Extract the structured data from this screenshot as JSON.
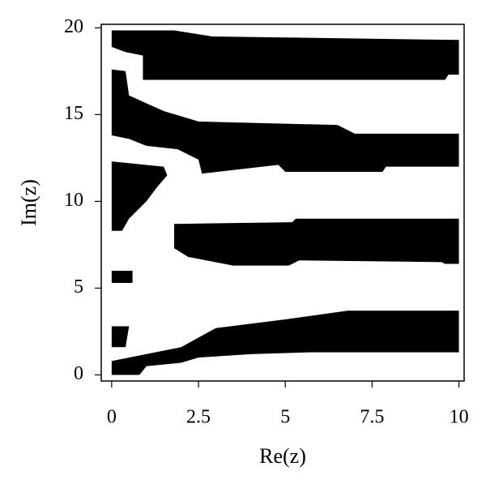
{
  "chart_data": {
    "type": "region",
    "xlabel": "Re(z)",
    "ylabel": "Im(z)",
    "xlim": [
      -0.3,
      10.15
    ],
    "ylim": [
      -0.35,
      20.2
    ],
    "xticks": [
      0,
      2.5,
      5,
      7.5,
      10
    ],
    "yticks": [
      0,
      5,
      10,
      15,
      20
    ],
    "color": "#000000",
    "regions": [
      {
        "x": [
          0,
          1.8,
          2.9,
          10,
          10,
          9.7,
          9.6,
          0.9,
          0.9,
          0.4,
          0
        ],
        "y": [
          19.85,
          19.85,
          19.5,
          19.3,
          17.3,
          17.3,
          17.0,
          17.0,
          18.4,
          18.6,
          18.9
        ]
      },
      {
        "x": [
          0,
          0.4,
          0.5,
          1.5,
          2.5,
          6.5,
          7.0,
          10,
          10,
          7.9,
          7.8,
          5.0,
          4.8,
          2.6,
          2.5,
          1.9,
          1.0,
          0.5,
          0
        ],
        "y": [
          17.6,
          17.5,
          16.1,
          15.2,
          14.6,
          14.4,
          13.9,
          13.9,
          12.0,
          12.0,
          11.7,
          11.7,
          12.1,
          11.6,
          12.4,
          13.0,
          13.2,
          13.6,
          13.8
        ]
      },
      {
        "x": [
          0,
          1.5,
          1.6,
          1.3,
          1.0,
          0.5,
          0.3,
          0
        ],
        "y": [
          12.3,
          12.0,
          11.5,
          10.8,
          10.0,
          9.0,
          8.3,
          8.3
        ]
      },
      {
        "x": [
          1.8,
          5.2,
          5.3,
          10,
          10,
          9.6,
          9.5,
          5.4,
          5.1,
          3.5,
          2.2,
          1.8
        ],
        "y": [
          8.7,
          8.8,
          9.0,
          9.0,
          6.4,
          6.4,
          6.5,
          6.6,
          6.3,
          6.3,
          6.8,
          7.3
        ]
      },
      {
        "x": [
          0,
          0.6,
          0.6,
          0
        ],
        "y": [
          6.0,
          6.0,
          5.3,
          5.3
        ]
      },
      {
        "x": [
          0,
          0.5,
          0.4,
          0
        ],
        "y": [
          2.8,
          2.8,
          1.6,
          1.6
        ]
      },
      {
        "x": [
          0,
          2.0,
          3.0,
          5.0,
          6.8,
          10,
          10,
          5.7,
          4.0,
          2.5,
          2.0,
          1.0,
          0.8,
          0
        ],
        "y": [
          0.8,
          1.6,
          2.7,
          3.2,
          3.7,
          3.7,
          1.3,
          1.3,
          1.2,
          1.0,
          0.7,
          0.5,
          0,
          0
        ]
      }
    ]
  }
}
